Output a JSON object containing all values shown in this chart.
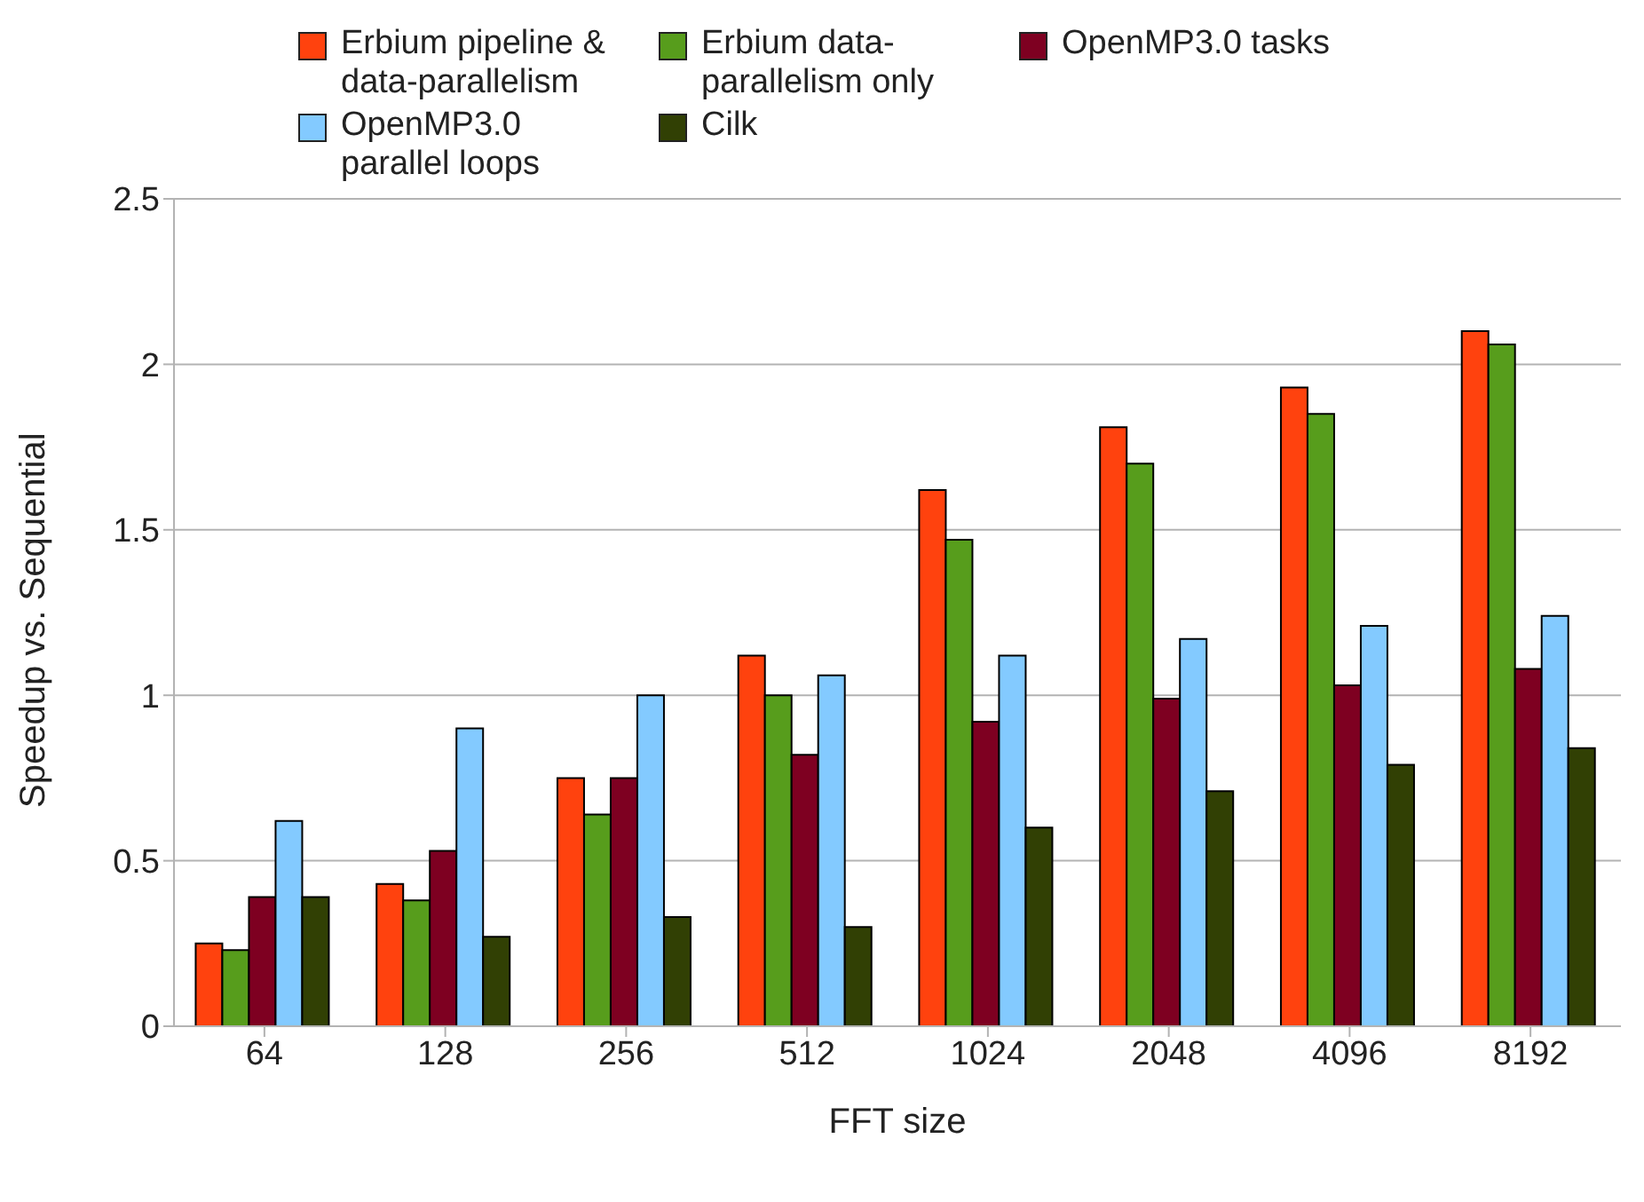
{
  "chart_data": {
    "type": "bar",
    "xlabel": "FFT size",
    "ylabel": "Speedup vs. Sequential",
    "categories": [
      "64",
      "128",
      "256",
      "512",
      "1024",
      "2048",
      "4096",
      "8192"
    ],
    "series": [
      {
        "name": "Erbium pipeline & data-parallelism",
        "color": "#ff420e",
        "values": [
          0.25,
          0.43,
          0.75,
          1.12,
          1.62,
          1.81,
          1.93,
          2.1
        ]
      },
      {
        "name": "Erbium data-parallelism only",
        "color": "#579d1c",
        "values": [
          0.23,
          0.38,
          0.64,
          1.0,
          1.47,
          1.7,
          1.85,
          2.06
        ]
      },
      {
        "name": "OpenMP3.0 tasks",
        "color": "#7e0021",
        "values": [
          0.39,
          0.53,
          0.75,
          0.82,
          0.92,
          0.99,
          1.03,
          1.08
        ]
      },
      {
        "name": "OpenMP3.0 parallel loops",
        "color": "#83caff",
        "values": [
          0.62,
          0.9,
          1.0,
          1.06,
          1.12,
          1.17,
          1.21,
          1.24
        ]
      },
      {
        "name": "Cilk",
        "color": "#314004",
        "values": [
          0.39,
          0.27,
          0.33,
          0.3,
          0.6,
          0.71,
          0.79,
          0.84
        ]
      }
    ],
    "ylim": [
      0,
      2.5
    ],
    "yticks": [
      0,
      0.5,
      1,
      1.5,
      2,
      2.5
    ],
    "grid": "y",
    "legend": "top"
  }
}
